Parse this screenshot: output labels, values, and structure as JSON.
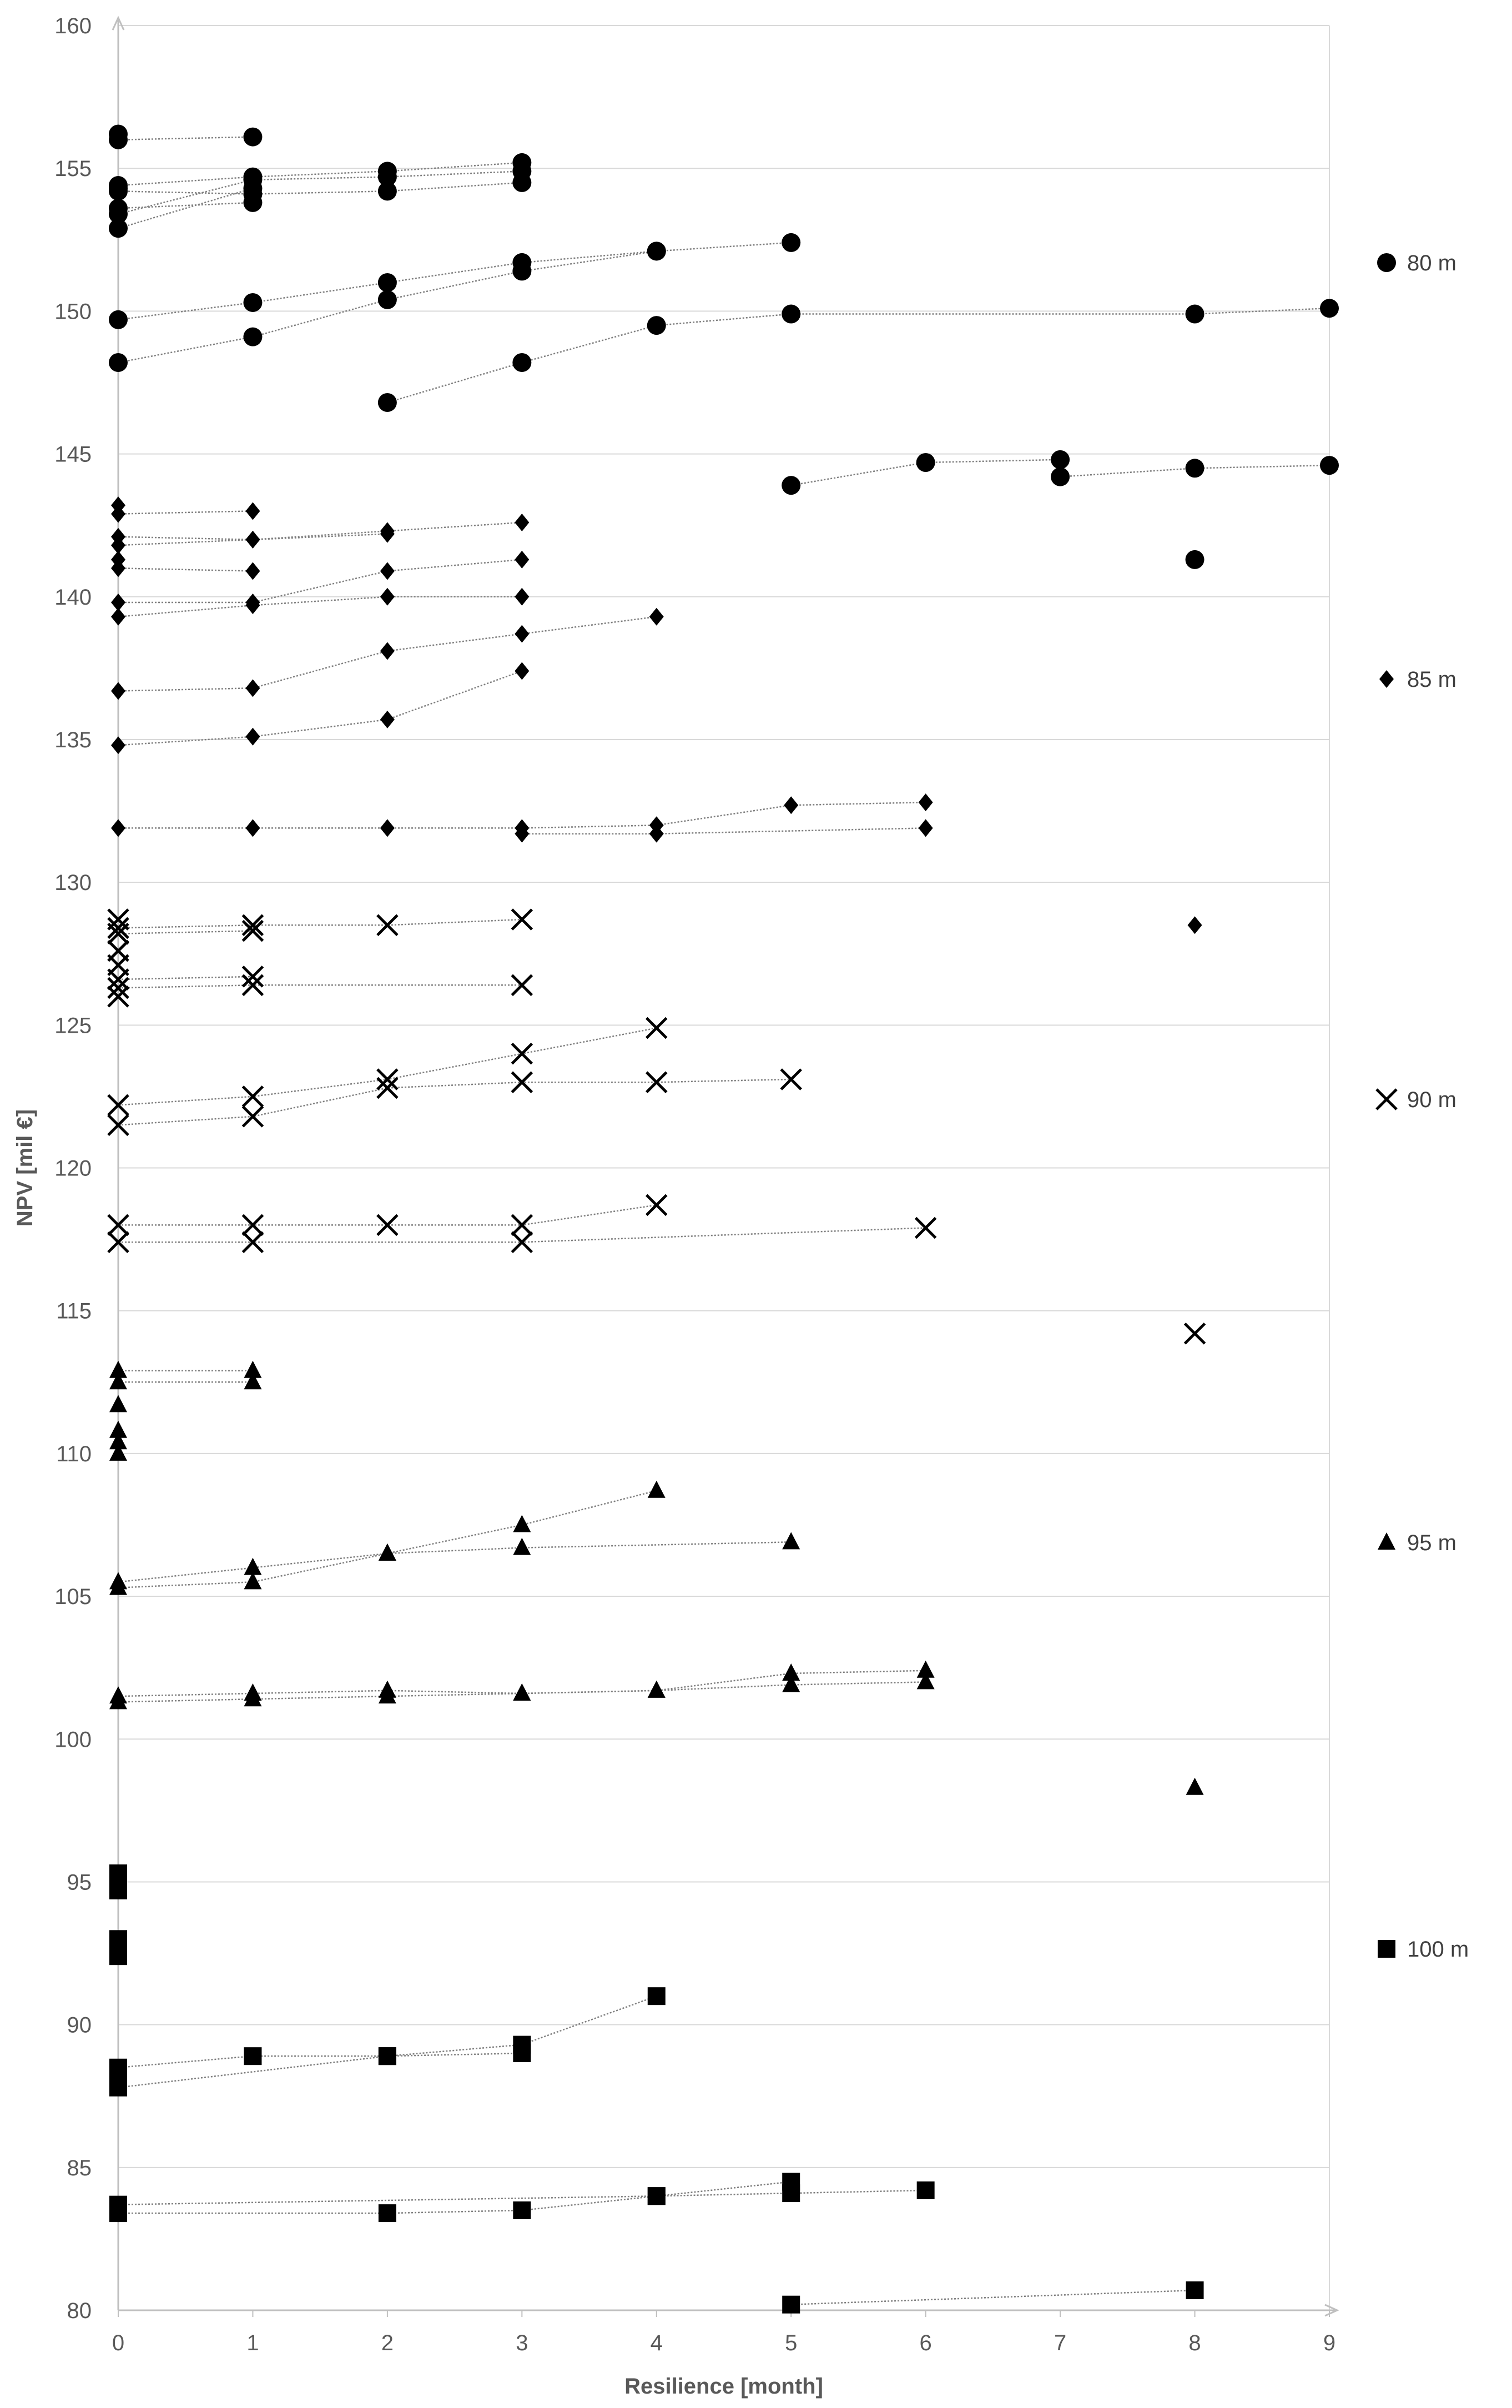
{
  "chart_data": {
    "type": "scatter",
    "xlabel": "Resilience [month]",
    "ylabel": "NPV [mil €]",
    "xlim": [
      0,
      9
    ],
    "ylim": [
      80,
      160
    ],
    "xticks": [
      "0",
      "1",
      "2",
      "3",
      "4",
      "5",
      "6",
      "7",
      "8",
      "9"
    ],
    "yticks": [
      "80",
      "85",
      "90",
      "95",
      "100",
      "105",
      "110",
      "115",
      "120",
      "125",
      "130",
      "135",
      "140",
      "145",
      "150",
      "155",
      "160"
    ],
    "grid": "horizontal",
    "legend_position": "right",
    "series": [
      {
        "name": "80 m",
        "marker": "circle",
        "lines": [
          [
            [
              0,
              156.0
            ],
            [
              1,
              156.1
            ]
          ],
          [
            [
              0,
              154.4
            ],
            [
              1,
              154.7
            ],
            [
              2,
              154.9
            ],
            [
              3,
              155.2
            ]
          ],
          [
            [
              0,
              153.4
            ],
            [
              1,
              154.6
            ],
            [
              2,
              154.7
            ],
            [
              3,
              154.9
            ]
          ],
          [
            [
              0,
              152.9
            ],
            [
              1,
              154.3
            ]
          ],
          [
            [
              0,
              154.2
            ],
            [
              1,
              154.1
            ],
            [
              2,
              154.2
            ],
            [
              3,
              154.5
            ]
          ],
          [
            [
              0,
              153.6
            ],
            [
              1,
              153.8
            ]
          ],
          [
            [
              0,
              149.7
            ],
            [
              1,
              150.3
            ],
            [
              2,
              151.0
            ],
            [
              3,
              151.7
            ],
            [
              4,
              152.1
            ],
            [
              5,
              152.4
            ]
          ],
          [
            [
              0,
              148.2
            ],
            [
              1,
              149.1
            ],
            [
              2,
              150.4
            ],
            [
              3,
              151.4
            ],
            [
              4,
              152.1
            ]
          ],
          [
            [
              2,
              146.8
            ],
            [
              3,
              148.2
            ],
            [
              4,
              149.5
            ],
            [
              5,
              149.9
            ],
            [
              8,
              149.9
            ],
            [
              9,
              150.1
            ]
          ],
          [
            [
              5,
              143.9
            ],
            [
              6,
              144.7
            ],
            [
              7,
              144.8
            ]
          ],
          [
            [
              7,
              144.2
            ],
            [
              8,
              144.5
            ],
            [
              9,
              144.6
            ]
          ]
        ],
        "points": [
          [
            0,
            156.2
          ],
          [
            0,
            154.3
          ],
          [
            8,
            141.3
          ]
        ]
      },
      {
        "name": "85 m",
        "marker": "diamond",
        "lines": [
          [
            [
              0,
              142.9
            ],
            [
              1,
              143.0
            ]
          ],
          [
            [
              0,
              142.1
            ],
            [
              1,
              142.0
            ],
            [
              2,
              142.2
            ]
          ],
          [
            [
              0,
              141.8
            ],
            [
              1,
              142.0
            ],
            [
              2,
              142.3
            ],
            [
              3,
              142.6
            ]
          ],
          [
            [
              0,
              141.0
            ],
            [
              1,
              140.9
            ]
          ],
          [
            [
              0,
              139.8
            ],
            [
              1,
              139.8
            ],
            [
              2,
              140.9
            ],
            [
              3,
              141.3
            ]
          ],
          [
            [
              0,
              139.3
            ],
            [
              1,
              139.7
            ],
            [
              2,
              140.0
            ],
            [
              3,
              140.0
            ]
          ],
          [
            [
              0,
              136.7
            ],
            [
              1,
              136.8
            ],
            [
              2,
              138.1
            ],
            [
              3,
              138.7
            ],
            [
              4,
              139.3
            ]
          ],
          [
            [
              0,
              134.8
            ],
            [
              1,
              135.1
            ],
            [
              2,
              135.7
            ],
            [
              3,
              137.4
            ]
          ],
          [
            [
              0,
              131.9
            ],
            [
              1,
              131.9
            ],
            [
              2,
              131.9
            ],
            [
              3,
              131.9
            ],
            [
              4,
              132.0
            ],
            [
              5,
              132.7
            ],
            [
              6,
              132.8
            ]
          ],
          [
            [
              3,
              131.7
            ],
            [
              4,
              131.7
            ],
            [
              6,
              131.9
            ]
          ]
        ],
        "points": [
          [
            0,
            143.2
          ],
          [
            0,
            141.3
          ],
          [
            8,
            128.5
          ]
        ]
      },
      {
        "name": "90 m",
        "marker": "x",
        "lines": [
          [
            [
              0,
              128.4
            ],
            [
              1,
              128.5
            ],
            [
              2,
              128.5
            ],
            [
              3,
              128.7
            ]
          ],
          [
            [
              0,
              128.2
            ],
            [
              1,
              128.3
            ]
          ],
          [
            [
              0,
              126.6
            ],
            [
              1,
              126.7
            ]
          ],
          [
            [
              0,
              126.3
            ],
            [
              1,
              126.4
            ],
            [
              3,
              126.4
            ]
          ],
          [
            [
              0,
              122.2
            ],
            [
              1,
              122.5
            ],
            [
              2,
              123.1
            ],
            [
              3,
              124.0
            ],
            [
              4,
              124.9
            ]
          ],
          [
            [
              0,
              121.5
            ],
            [
              1,
              121.8
            ],
            [
              2,
              122.8
            ],
            [
              3,
              123.0
            ],
            [
              4,
              123.0
            ],
            [
              5,
              123.1
            ]
          ],
          [
            [
              0,
              118.0
            ],
            [
              1,
              118.0
            ],
            [
              2,
              118.0
            ],
            [
              3,
              118.0
            ],
            [
              4,
              118.7
            ]
          ],
          [
            [
              0,
              117.4
            ],
            [
              1,
              117.4
            ],
            [
              3,
              117.4
            ],
            [
              6,
              117.9
            ]
          ]
        ],
        "points": [
          [
            0,
            128.7
          ],
          [
            0,
            127.6
          ],
          [
            0,
            127.1
          ],
          [
            0,
            126.0
          ],
          [
            8,
            114.2
          ]
        ]
      },
      {
        "name": "95 m",
        "marker": "triangle",
        "lines": [
          [
            [
              0,
              112.9
            ],
            [
              1,
              112.9
            ]
          ],
          [
            [
              0,
              112.5
            ],
            [
              1,
              112.5
            ]
          ],
          [
            [
              0,
              105.5
            ],
            [
              1,
              106.0
            ],
            [
              2,
              106.5
            ],
            [
              3,
              107.5
            ],
            [
              4,
              108.7
            ]
          ],
          [
            [
              0,
              105.3
            ],
            [
              1,
              105.5
            ],
            [
              2,
              106.5
            ],
            [
              3,
              106.7
            ],
            [
              5,
              106.9
            ]
          ],
          [
            [
              0,
              101.5
            ],
            [
              1,
              101.6
            ],
            [
              2,
              101.7
            ],
            [
              3,
              101.6
            ],
            [
              4,
              101.7
            ],
            [
              5,
              102.3
            ],
            [
              6,
              102.4
            ]
          ],
          [
            [
              0,
              101.3
            ],
            [
              1,
              101.4
            ],
            [
              2,
              101.5
            ],
            [
              3,
              101.6
            ],
            [
              4,
              101.7
            ],
            [
              5,
              101.9
            ],
            [
              6,
              102.0
            ]
          ]
        ],
        "points": [
          [
            0,
            111.7
          ],
          [
            0,
            110.8
          ],
          [
            0,
            110.4
          ],
          [
            0,
            110.0
          ],
          [
            8,
            98.3
          ]
        ]
      },
      {
        "name": "100 m",
        "marker": "square",
        "lines": [
          [
            [
              0,
              88.5
            ],
            [
              1,
              88.9
            ],
            [
              2,
              88.9
            ],
            [
              3,
              89.0
            ]
          ],
          [
            [
              0,
              87.8
            ],
            [
              2,
              88.9
            ],
            [
              3,
              89.3
            ],
            [
              4,
              91.0
            ]
          ],
          [
            [
              0,
              83.7
            ],
            [
              4,
              84.0
            ],
            [
              5,
              84.5
            ]
          ],
          [
            [
              0,
              83.4
            ],
            [
              2,
              83.4
            ],
            [
              3,
              83.5
            ],
            [
              4,
              84.0
            ],
            [
              5,
              84.1
            ],
            [
              6,
              84.2
            ]
          ],
          [
            [
              5,
              80.2
            ],
            [
              8,
              80.7
            ]
          ]
        ],
        "points": [
          [
            0,
            95.3
          ],
          [
            0,
            94.7
          ],
          [
            0,
            93.0
          ],
          [
            0,
            92.4
          ],
          [
            0,
            88.2
          ]
        ]
      }
    ]
  }
}
